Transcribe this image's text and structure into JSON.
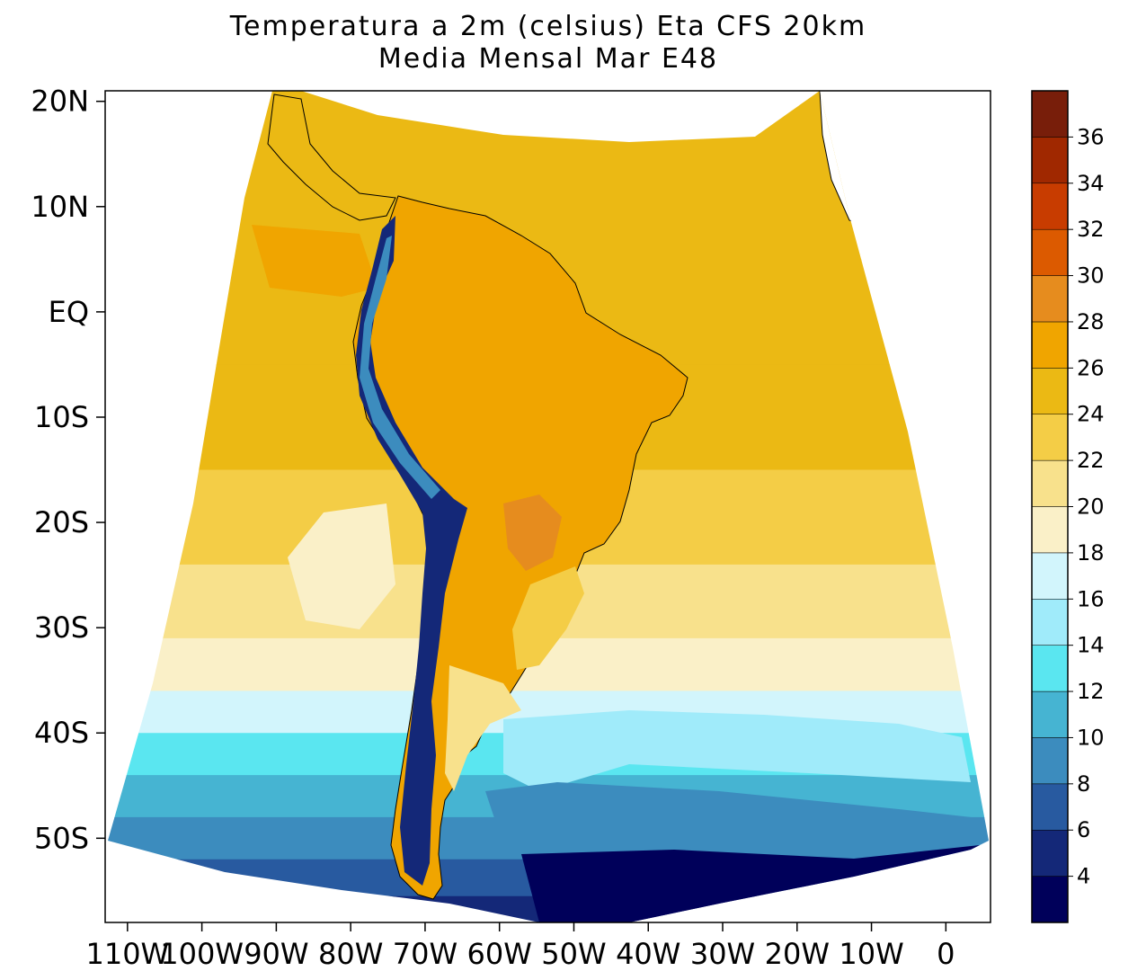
{
  "title": {
    "line1": "Temperatura a 2m (celsius) Eta CFS 20km",
    "line2": "Media Mensal Mar  E48"
  },
  "y_axis": {
    "ticks": [
      {
        "label": "20N",
        "value": 20
      },
      {
        "label": "10N",
        "value": 10
      },
      {
        "label": "EQ",
        "value": 0
      },
      {
        "label": "10S",
        "value": -10
      },
      {
        "label": "20S",
        "value": -20
      },
      {
        "label": "30S",
        "value": -30
      },
      {
        "label": "40S",
        "value": -40
      },
      {
        "label": "50S",
        "value": -50
      }
    ]
  },
  "x_axis": {
    "ticks": [
      {
        "label": "110W",
        "value": -110
      },
      {
        "label": "100W",
        "value": -100
      },
      {
        "label": "90W",
        "value": -90
      },
      {
        "label": "80W",
        "value": -80
      },
      {
        "label": "70W",
        "value": -70
      },
      {
        "label": "60W",
        "value": -60
      },
      {
        "label": "50W",
        "value": -50
      },
      {
        "label": "40W",
        "value": -40
      },
      {
        "label": "30W",
        "value": -30
      },
      {
        "label": "20W",
        "value": -20
      },
      {
        "label": "10W",
        "value": -10
      },
      {
        "label": "0",
        "value": 0
      }
    ]
  },
  "colorbar": {
    "labels": [
      "4",
      "6",
      "8",
      "10",
      "12",
      "14",
      "16",
      "18",
      "20",
      "22",
      "24",
      "26",
      "28",
      "30",
      "32",
      "34",
      "36"
    ],
    "colors": [
      "#00005a",
      "#142878",
      "#285aa0",
      "#3c8cbe",
      "#46b4d2",
      "#5ae6f0",
      "#a0ebfa",
      "#d2f5fc",
      "#faf0c8",
      "#f8e18c",
      "#f4cd46",
      "#ebb914",
      "#f0a500",
      "#e68c1e",
      "#dc5a00",
      "#c83c00",
      "#a02800",
      "#781e0a"
    ]
  },
  "chart_data": {
    "type": "heatmap",
    "variable": "Temperatura a 2m",
    "units": "celsius",
    "model": "Eta CFS 20km",
    "period": "Media Mensal Mar",
    "member": "E48",
    "lon_range": [
      -113,
      6
    ],
    "lat_range": [
      -58,
      21
    ],
    "levels": [
      4,
      6,
      8,
      10,
      12,
      14,
      16,
      18,
      20,
      22,
      24,
      26,
      28,
      30,
      32,
      34,
      36
    ],
    "bands": [
      {
        "lat": 18,
        "value": 25
      },
      {
        "lat": 10,
        "value": 25
      },
      {
        "lat": 0,
        "value": 25
      },
      {
        "lat": -10,
        "value": 25
      },
      {
        "lat": -20,
        "value": 23
      },
      {
        "lat": -28,
        "value": 21
      },
      {
        "lat": -34,
        "value": 19
      },
      {
        "lat": -38,
        "value": 17
      },
      {
        "lat": -42,
        "value": 13
      },
      {
        "lat": -46,
        "value": 11
      },
      {
        "lat": -50,
        "value": 9
      },
      {
        "lat": -54,
        "value": 7
      },
      {
        "lat": -57,
        "value": 5
      }
    ]
  }
}
